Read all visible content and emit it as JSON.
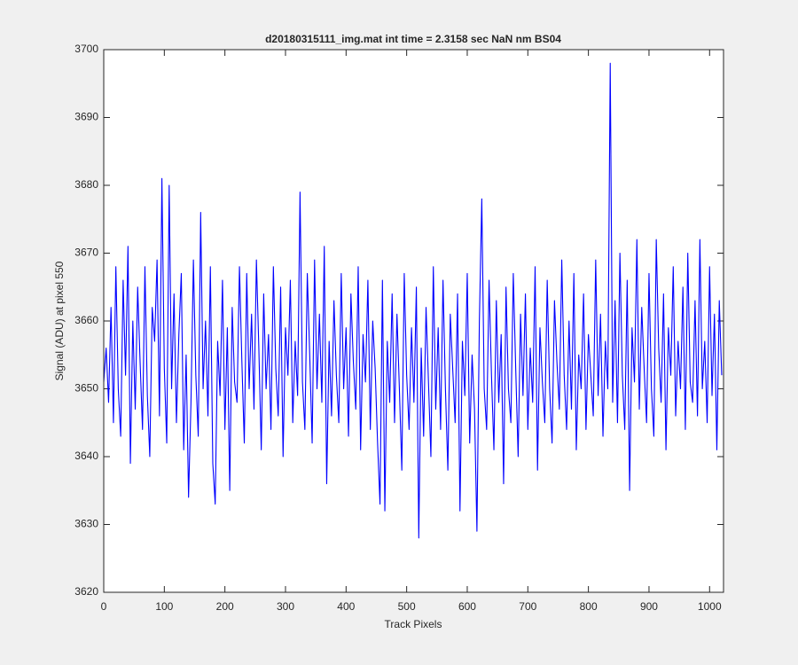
{
  "chart_data": {
    "type": "line",
    "title": "d20180315111_img.mat int time = 2.3158 sec  NaN nm BS04",
    "x_label": "Track Pixels",
    "y_label": "Signal (ADU) at pixel 550",
    "x": [
      0,
      4,
      8,
      12,
      16,
      20,
      24,
      28,
      32,
      36,
      40,
      44,
      48,
      52,
      56,
      60,
      64,
      68,
      72,
      76,
      80,
      84,
      88,
      92,
      96,
      100,
      104,
      108,
      112,
      116,
      120,
      124,
      128,
      132,
      136,
      140,
      144,
      148,
      152,
      156,
      160,
      164,
      168,
      172,
      176,
      180,
      184,
      188,
      192,
      196,
      200,
      204,
      208,
      212,
      216,
      220,
      224,
      228,
      232,
      236,
      240,
      244,
      248,
      252,
      256,
      260,
      264,
      268,
      272,
      276,
      280,
      284,
      288,
      292,
      296,
      300,
      304,
      308,
      312,
      316,
      320,
      324,
      328,
      332,
      336,
      340,
      344,
      348,
      352,
      356,
      360,
      364,
      368,
      372,
      376,
      380,
      384,
      388,
      392,
      396,
      400,
      404,
      408,
      412,
      416,
      420,
      424,
      428,
      432,
      436,
      440,
      444,
      448,
      452,
      456,
      460,
      464,
      468,
      472,
      476,
      480,
      484,
      488,
      492,
      496,
      500,
      504,
      508,
      512,
      516,
      520,
      524,
      528,
      532,
      536,
      540,
      544,
      548,
      552,
      556,
      560,
      564,
      568,
      572,
      576,
      580,
      584,
      588,
      592,
      596,
      600,
      604,
      608,
      612,
      616,
      620,
      624,
      628,
      632,
      636,
      640,
      644,
      648,
      652,
      656,
      660,
      664,
      668,
      672,
      676,
      680,
      684,
      688,
      692,
      696,
      700,
      704,
      708,
      712,
      716,
      720,
      724,
      728,
      732,
      736,
      740,
      744,
      748,
      752,
      756,
      760,
      764,
      768,
      772,
      776,
      780,
      784,
      788,
      792,
      796,
      800,
      804,
      808,
      812,
      816,
      820,
      824,
      828,
      832,
      836,
      840,
      844,
      848,
      852,
      856,
      860,
      864,
      868,
      872,
      876,
      880,
      884,
      888,
      892,
      896,
      900,
      904,
      908,
      912,
      916,
      920,
      924,
      928,
      932,
      936,
      940,
      944,
      948,
      952,
      956,
      960,
      964,
      968,
      972,
      976,
      980,
      984,
      988,
      992,
      996,
      1000,
      1004,
      1008,
      1012,
      1016,
      1020
    ],
    "series": [
      {
        "name": "signal",
        "color": "#0000ff",
        "values": [
          3651,
          3656,
          3648,
          3662,
          3645,
          3668,
          3650,
          3643,
          3666,
          3652,
          3671,
          3639,
          3660,
          3647,
          3665,
          3654,
          3644,
          3668,
          3649,
          3640,
          3662,
          3657,
          3669,
          3646,
          3681,
          3653,
          3642,
          3680,
          3650,
          3664,
          3645,
          3658,
          3667,
          3641,
          3655,
          3634,
          3648,
          3669,
          3652,
          3643,
          3676,
          3650,
          3660,
          3646,
          3668,
          3639,
          3633,
          3657,
          3649,
          3666,
          3644,
          3659,
          3635,
          3662,
          3651,
          3648,
          3668,
          3654,
          3642,
          3667,
          3650,
          3661,
          3647,
          3669,
          3656,
          3641,
          3664,
          3650,
          3658,
          3644,
          3668,
          3653,
          3646,
          3665,
          3640,
          3659,
          3652,
          3666,
          3645,
          3657,
          3649,
          3679,
          3651,
          3644,
          3667,
          3655,
          3642,
          3669,
          3650,
          3661,
          3648,
          3671,
          3636,
          3657,
          3646,
          3663,
          3652,
          3645,
          3667,
          3650,
          3659,
          3643,
          3664,
          3654,
          3647,
          3668,
          3641,
          3658,
          3651,
          3666,
          3644,
          3660,
          3653,
          3642,
          3633,
          3666,
          3632,
          3657,
          3648,
          3664,
          3645,
          3661,
          3650,
          3638,
          3667,
          3652,
          3644,
          3659,
          3648,
          3665,
          3628,
          3656,
          3643,
          3662,
          3651,
          3640,
          3668,
          3647,
          3659,
          3644,
          3666,
          3650,
          3638,
          3661,
          3653,
          3645,
          3664,
          3632,
          3657,
          3649,
          3667,
          3642,
          3655,
          3647,
          3629,
          3660,
          3678,
          3650,
          3644,
          3666,
          3652,
          3641,
          3663,
          3648,
          3658,
          3636,
          3665,
          3650,
          3645,
          3667,
          3653,
          3640,
          3661,
          3649,
          3664,
          3644,
          3656,
          3648,
          3668,
          3638,
          3659,
          3651,
          3645,
          3666,
          3650,
          3642,
          3663,
          3654,
          3647,
          3669,
          3652,
          3644,
          3660,
          3647,
          3667,
          3641,
          3655,
          3650,
          3664,
          3644,
          3658,
          3652,
          3646,
          3669,
          3649,
          3661,
          3643,
          3657,
          3650,
          3698,
          3648,
          3663,
          3645,
          3670,
          3652,
          3644,
          3666,
          3635,
          3659,
          3651,
          3672,
          3647,
          3662,
          3653,
          3645,
          3667,
          3650,
          3643,
          3672,
          3656,
          3648,
          3664,
          3641,
          3659,
          3652,
          3668,
          3646,
          3657,
          3650,
          3665,
          3644,
          3670,
          3651,
          3648,
          3663,
          3646,
          3672,
          3650,
          3657,
          3645,
          3668,
          3649,
          3661,
          3641,
          3663,
          3652
        ]
      }
    ],
    "xlim": [
      0,
      1023
    ],
    "ylim": [
      3620,
      3700
    ],
    "xticks": [
      0,
      100,
      200,
      300,
      400,
      500,
      600,
      700,
      800,
      900,
      1000
    ],
    "yticks": [
      3620,
      3630,
      3640,
      3650,
      3660,
      3670,
      3680,
      3690,
      3700
    ],
    "grid": false
  }
}
